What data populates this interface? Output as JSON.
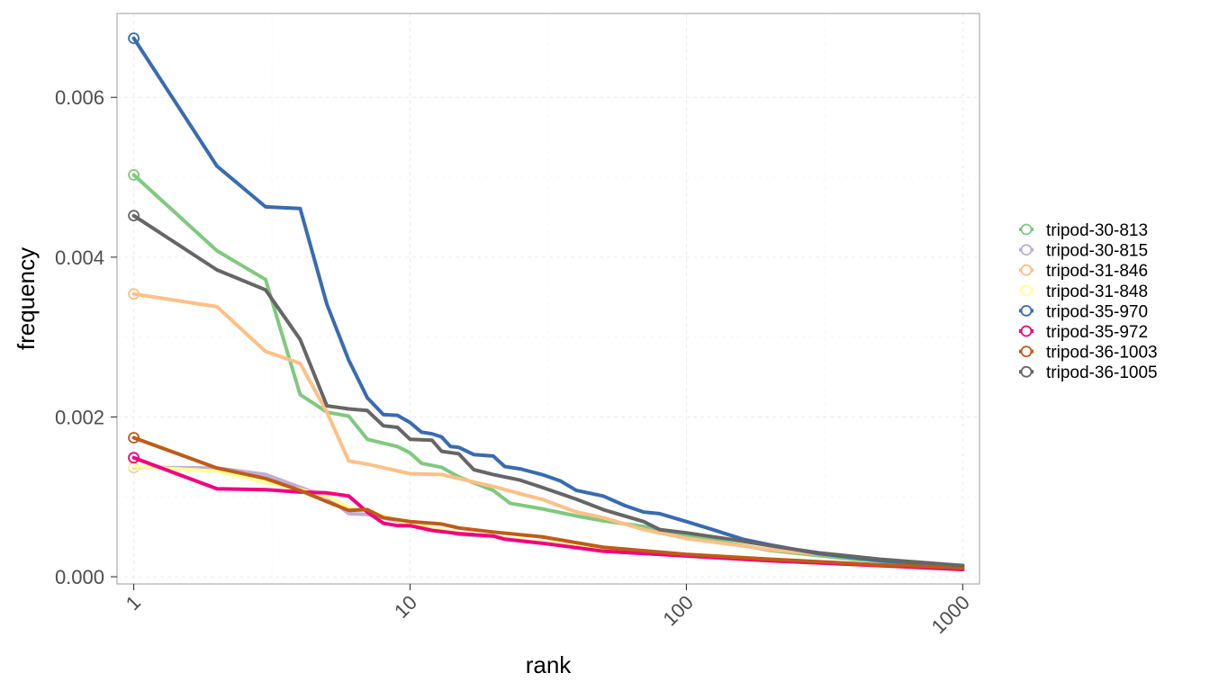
{
  "chart_data": {
    "type": "line",
    "xlabel": "rank",
    "ylabel": "frequency",
    "x_scale": "log10",
    "xlim": [
      0.87,
      1150
    ],
    "ylim": [
      -9e-05,
      0.00705
    ],
    "x_ticks": [
      1,
      10,
      100,
      1000
    ],
    "x_tick_labels": [
      "1",
      "10",
      "100",
      "1000"
    ],
    "y_ticks": [
      0.0,
      0.002,
      0.004,
      0.006
    ],
    "y_tick_labels": [
      "0.000",
      "0.002",
      "0.004",
      "0.006"
    ],
    "grid": true,
    "legend_position": "right",
    "markers": "open circle at rank 1",
    "series": [
      {
        "name": "tripod-30-813",
        "color": "#7fc97f",
        "points": [
          [
            1,
            0.00503
          ],
          [
            2,
            0.00408
          ],
          [
            3,
            0.00372
          ],
          [
            4,
            0.00228
          ],
          [
            5,
            0.00206
          ],
          [
            6,
            0.00201
          ],
          [
            7,
            0.00172
          ],
          [
            9,
            0.00163
          ],
          [
            10,
            0.00155
          ],
          [
            11,
            0.00142
          ],
          [
            13,
            0.00137
          ],
          [
            15,
            0.00125
          ],
          [
            20,
            0.00108
          ],
          [
            23,
            0.00092
          ],
          [
            30,
            0.00085
          ],
          [
            40,
            0.00076
          ],
          [
            50,
            0.0007
          ],
          [
            70,
            0.00063
          ],
          [
            100,
            0.00052
          ],
          [
            200,
            0.00033
          ],
          [
            400,
            0.00022
          ],
          [
            1000,
            0.00013
          ]
        ]
      },
      {
        "name": "tripod-30-815",
        "color": "#beaed4",
        "points": [
          [
            1,
            0.00137
          ],
          [
            2,
            0.00136
          ],
          [
            3,
            0.00128
          ],
          [
            4,
            0.00112
          ],
          [
            5,
            0.001
          ],
          [
            6,
            0.00079
          ],
          [
            7,
            0.00078
          ],
          [
            10,
            0.00066
          ],
          [
            15,
            0.00053
          ],
          [
            20,
            0.0005
          ],
          [
            30,
            0.00043
          ],
          [
            50,
            0.00035
          ],
          [
            100,
            0.00026
          ],
          [
            200,
            0.0002
          ],
          [
            500,
            0.00014
          ],
          [
            1000,
            0.0001
          ]
        ]
      },
      {
        "name": "tripod-31-846",
        "color": "#fdc086",
        "points": [
          [
            1,
            0.00354
          ],
          [
            2,
            0.00338
          ],
          [
            3,
            0.00282
          ],
          [
            4,
            0.00267
          ],
          [
            5,
            0.00206
          ],
          [
            6,
            0.00145
          ],
          [
            7,
            0.00141
          ],
          [
            10,
            0.00129
          ],
          [
            13,
            0.00128
          ],
          [
            20,
            0.00113
          ],
          [
            25,
            0.00104
          ],
          [
            30,
            0.00097
          ],
          [
            40,
            0.00081
          ],
          [
            50,
            0.00074
          ],
          [
            70,
            0.00059
          ],
          [
            100,
            0.00048
          ],
          [
            200,
            0.00034
          ],
          [
            500,
            0.00021
          ],
          [
            1000,
            0.00012
          ]
        ]
      },
      {
        "name": "tripod-31-848",
        "color": "#ffff99",
        "points": [
          [
            1,
            0.00138
          ],
          [
            2,
            0.00132
          ],
          [
            3,
            0.00118
          ],
          [
            4,
            0.00109
          ],
          [
            5,
            0.00101
          ],
          [
            6,
            0.00087
          ],
          [
            7,
            0.00082
          ],
          [
            10,
            0.00066
          ],
          [
            15,
            0.00055
          ],
          [
            20,
            0.0005
          ],
          [
            30,
            0.00043
          ],
          [
            50,
            0.00035
          ],
          [
            100,
            0.00026
          ],
          [
            200,
            0.0002
          ],
          [
            500,
            0.00014
          ],
          [
            1000,
            0.0001
          ]
        ]
      },
      {
        "name": "tripod-35-970",
        "color": "#386cb0",
        "points": [
          [
            1,
            0.00674
          ],
          [
            2,
            0.00514
          ],
          [
            3,
            0.00463
          ],
          [
            4,
            0.00461
          ],
          [
            5,
            0.00341
          ],
          [
            6,
            0.00271
          ],
          [
            7,
            0.00224
          ],
          [
            8,
            0.00203
          ],
          [
            9,
            0.00202
          ],
          [
            10,
            0.00193
          ],
          [
            11,
            0.00181
          ],
          [
            12,
            0.00179
          ],
          [
            13,
            0.00175
          ],
          [
            14,
            0.00163
          ],
          [
            15,
            0.00162
          ],
          [
            17,
            0.00153
          ],
          [
            20,
            0.00151
          ],
          [
            22,
            0.00138
          ],
          [
            25,
            0.00135
          ],
          [
            30,
            0.00128
          ],
          [
            35,
            0.0012
          ],
          [
            40,
            0.00108
          ],
          [
            50,
            0.00101
          ],
          [
            60,
            0.00089
          ],
          [
            70,
            0.00081
          ],
          [
            80,
            0.00079
          ],
          [
            100,
            0.00069
          ],
          [
            130,
            0.00057
          ],
          [
            160,
            0.00047
          ],
          [
            200,
            0.0004
          ],
          [
            300,
            0.00029
          ],
          [
            500,
            0.0002
          ],
          [
            1000,
            0.00014
          ]
        ]
      },
      {
        "name": "tripod-35-972",
        "color": "#f0027f",
        "points": [
          [
            1,
            0.00149
          ],
          [
            2,
            0.0011
          ],
          [
            3,
            0.00109
          ],
          [
            4,
            0.00106
          ],
          [
            5,
            0.00105
          ],
          [
            6,
            0.00101
          ],
          [
            7,
            0.00081
          ],
          [
            8,
            0.00067
          ],
          [
            9,
            0.00064
          ],
          [
            10,
            0.00064
          ],
          [
            12,
            0.00058
          ],
          [
            15,
            0.00054
          ],
          [
            20,
            0.00051
          ],
          [
            22,
            0.00047
          ],
          [
            30,
            0.00042
          ],
          [
            50,
            0.00032
          ],
          [
            100,
            0.00026
          ],
          [
            200,
            0.0002
          ],
          [
            500,
            0.00014
          ],
          [
            1000,
            9e-05
          ]
        ]
      },
      {
        "name": "tripod-36-1003",
        "color": "#bf5b17",
        "points": [
          [
            1,
            0.00174
          ],
          [
            2,
            0.00136
          ],
          [
            3,
            0.00123
          ],
          [
            4,
            0.00108
          ],
          [
            5,
            0.00094
          ],
          [
            6,
            0.00083
          ],
          [
            7,
            0.00084
          ],
          [
            8,
            0.00074
          ],
          [
            10,
            0.00069
          ],
          [
            13,
            0.00066
          ],
          [
            15,
            0.00061
          ],
          [
            20,
            0.00056
          ],
          [
            30,
            0.0005
          ],
          [
            50,
            0.00037
          ],
          [
            100,
            0.00028
          ],
          [
            200,
            0.00022
          ],
          [
            500,
            0.00015
          ],
          [
            1000,
            0.00011
          ]
        ]
      },
      {
        "name": "tripod-36-1005",
        "color": "#666666",
        "points": [
          [
            1,
            0.00452
          ],
          [
            2,
            0.00384
          ],
          [
            3,
            0.00359
          ],
          [
            4,
            0.00297
          ],
          [
            5,
            0.00214
          ],
          [
            6,
            0.0021
          ],
          [
            7,
            0.00208
          ],
          [
            8,
            0.00189
          ],
          [
            9,
            0.00187
          ],
          [
            10,
            0.00172
          ],
          [
            12,
            0.00171
          ],
          [
            13,
            0.00157
          ],
          [
            15,
            0.00154
          ],
          [
            17,
            0.00134
          ],
          [
            20,
            0.00128
          ],
          [
            25,
            0.00121
          ],
          [
            30,
            0.00112
          ],
          [
            40,
            0.00097
          ],
          [
            50,
            0.00084
          ],
          [
            70,
            0.00069
          ],
          [
            80,
            0.00059
          ],
          [
            100,
            0.00055
          ],
          [
            150,
            0.00046
          ],
          [
            200,
            0.00039
          ],
          [
            300,
            0.0003
          ],
          [
            500,
            0.00022
          ],
          [
            1000,
            0.00014
          ]
        ]
      }
    ]
  }
}
